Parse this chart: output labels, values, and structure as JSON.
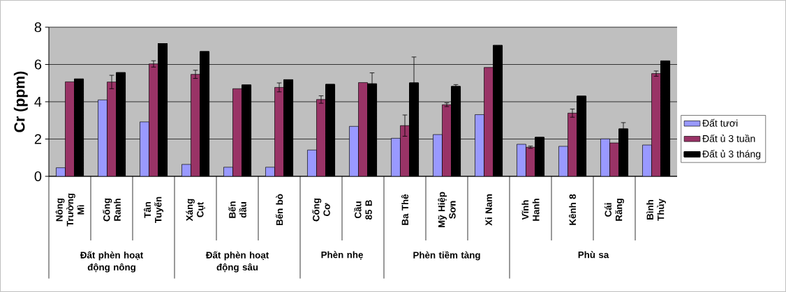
{
  "chart_data": {
    "type": "bar",
    "ylabel": "Cr (ppm)",
    "categories": [
      "Nông Trường Mì",
      "Cống Ranh",
      "Tân Tuyến",
      "Xáng Cụt",
      "Bến dầu",
      "Bến bò",
      "Cống Cơ",
      "Cầu 85 B",
      "Ba Thê",
      "Mỹ Hiệp Sơn",
      "Xi Nam",
      "Vĩnh Hanh",
      "Kênh 8",
      "Cái Răng",
      "Bình Thủy"
    ],
    "series": [
      {
        "name": "Đất tươi",
        "color": "#9999ff",
        "values": [
          0.46,
          4.1,
          2.92,
          0.64,
          0.49,
          0.49,
          1.41,
          2.68,
          2.04,
          2.24,
          3.31,
          1.72,
          1.61,
          2.01,
          1.68
        ]
      },
      {
        "name": "Đất ủ 3 tuần",
        "color": "#993366",
        "values": [
          5.07,
          5.06,
          6.03,
          5.47,
          4.7,
          4.77,
          4.12,
          5.03,
          2.72,
          3.84,
          5.84,
          1.56,
          3.39,
          1.79,
          5.51
        ],
        "errors": [
          null,
          0.36,
          0.17,
          0.22,
          null,
          0.24,
          0.2,
          null,
          0.57,
          0.1,
          null,
          0.06,
          0.22,
          null,
          0.14
        ]
      },
      {
        "name": "Đất ủ 3 tháng",
        "color": "#000000",
        "values": [
          5.22,
          5.56,
          7.12,
          6.69,
          4.9,
          5.18,
          4.93,
          4.96,
          5.01,
          4.82,
          7.02,
          2.09,
          4.3,
          2.54,
          6.19
        ],
        "errors": [
          null,
          null,
          null,
          null,
          null,
          null,
          null,
          0.59,
          1.39,
          0.1,
          null,
          null,
          null,
          0.34,
          null
        ]
      }
    ],
    "ylim": [
      0,
      8
    ],
    "yticks": [
      0,
      2,
      4,
      6,
      8
    ],
    "grid": "y",
    "legend": "right",
    "annotations": [
      "Đất phèn hoạt động nông",
      "Đất phèn hoạt động sâu",
      "Phèn nhẹ",
      "Phèn tiềm tàng",
      "Phù sa"
    ]
  }
}
